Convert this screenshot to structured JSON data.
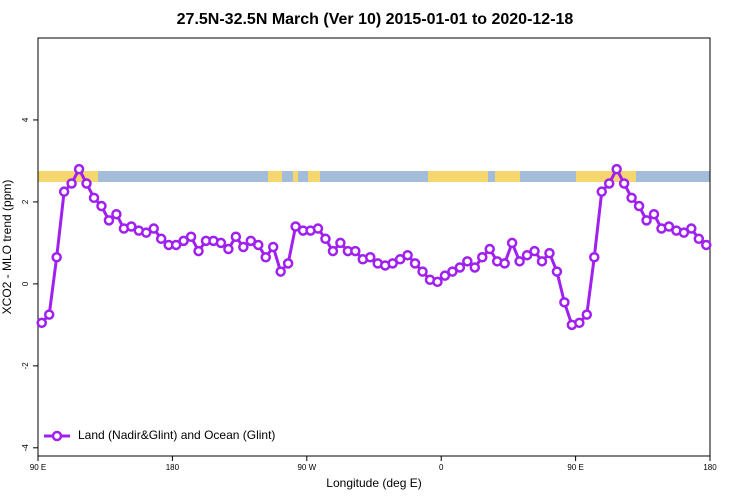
{
  "chart_data": {
    "type": "line",
    "title": "27.5N-32.5N March (Ver 10)   2015-01-01 to 2020-12-18",
    "xlabel": "Longitude (deg E)",
    "ylabel": "XCO2 - MLO trend (ppm)",
    "x": [
      92.5,
      97.5,
      102.5,
      107.5,
      112.5,
      117.5,
      122.5,
      127.5,
      132.5,
      137.5,
      142.5,
      147.5,
      152.5,
      157.5,
      162.5,
      167.5,
      172.5,
      177.5,
      182.5,
      187.5,
      192.5,
      197.5,
      202.5,
      207.5,
      212.5,
      217.5,
      222.5,
      227.5,
      232.5,
      237.5,
      242.5,
      247.5,
      252.5,
      257.5,
      262.5,
      267.5,
      272.5,
      277.5,
      282.5,
      287.5,
      292.5,
      297.5,
      302.5,
      307.5,
      312.5,
      317.5,
      322.5,
      327.5,
      332.5,
      337.5,
      342.5,
      347.5,
      352.5,
      357.5,
      362.5,
      367.5,
      372.5,
      377.5,
      382.5,
      387.5,
      392.5,
      397.5,
      402.5,
      407.5,
      412.5,
      417.5,
      422.5,
      427.5,
      432.5,
      437.5,
      442.5,
      447.5,
      452.5,
      457.5,
      462.5,
      467.5,
      472.5,
      477.5,
      482.5,
      487.5,
      492.5,
      497.5,
      502.5,
      507.5,
      512.5,
      517.5,
      522.5,
      527.5,
      532.5,
      537.5
    ],
    "series": [
      {
        "name": "Land (Nadir&Glint) and Ocean (Glint)",
        "color": "#a020f0",
        "values": [
          -0.95,
          -0.75,
          0.65,
          2.25,
          2.45,
          2.8,
          2.45,
          2.1,
          1.9,
          1.55,
          1.7,
          1.35,
          1.4,
          1.3,
          1.25,
          1.35,
          1.1,
          0.95,
          0.95,
          1.05,
          1.15,
          0.8,
          1.05,
          1.05,
          1.0,
          0.85,
          1.15,
          0.9,
          1.05,
          0.95,
          0.65,
          0.9,
          0.3,
          0.5,
          1.4,
          1.3,
          1.3,
          1.35,
          1.1,
          0.8,
          1.0,
          0.8,
          0.8,
          0.6,
          0.65,
          0.5,
          0.45,
          0.5,
          0.6,
          0.7,
          0.5,
          0.3,
          0.1,
          0.05,
          0.2,
          0.3,
          0.4,
          0.55,
          0.4,
          0.65,
          0.85,
          0.55,
          0.5,
          1.0,
          0.55,
          0.7,
          0.8,
          0.55,
          0.75,
          0.3,
          -0.45,
          -1.0,
          -0.95,
          -0.75,
          0.65,
          2.25,
          2.45,
          2.8,
          2.45,
          2.1,
          1.9,
          1.55,
          1.7,
          1.35,
          1.4,
          1.3,
          1.25,
          1.35,
          1.1,
          0.95
        ]
      }
    ],
    "xlim": [
      90,
      540
    ],
    "xticks": [
      {
        "value": 90,
        "label": "90 E"
      },
      {
        "value": 180,
        "label": "180"
      },
      {
        "value": 270,
        "label": "90 W"
      },
      {
        "value": 360,
        "label": "0"
      },
      {
        "value": 450,
        "label": "90 E"
      },
      {
        "value": 540,
        "label": "180"
      }
    ],
    "ylim": [
      -4.2,
      6
    ],
    "yticks": [
      -4,
      -2,
      0,
      2,
      4
    ],
    "legend": "bottomleft"
  }
}
